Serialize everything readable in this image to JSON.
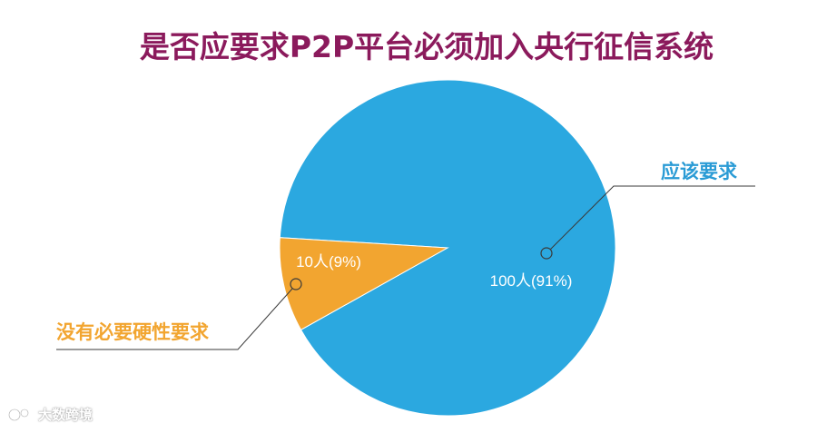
{
  "chart_data": {
    "type": "pie",
    "title": "是否应要求P2P平台必须加入央行征信系统",
    "slices": [
      {
        "label": "应该要求",
        "value": 100,
        "percent": 91,
        "data_label": "100人(91%)",
        "color": "#2BA8E0"
      },
      {
        "label": "没有必要硬性要求",
        "value": 10,
        "percent": 9,
        "data_label": "10人(9%)",
        "color": "#F2A530"
      }
    ]
  },
  "colors": {
    "title": "#8B1A5C",
    "slice_label": "#ffffff",
    "callout_blue": "#2A9BD5",
    "callout_orange": "#F2A530",
    "leader_line": "#3a3a3a"
  },
  "watermark": {
    "text": "大数跨境",
    "icon": "logo-icon"
  }
}
